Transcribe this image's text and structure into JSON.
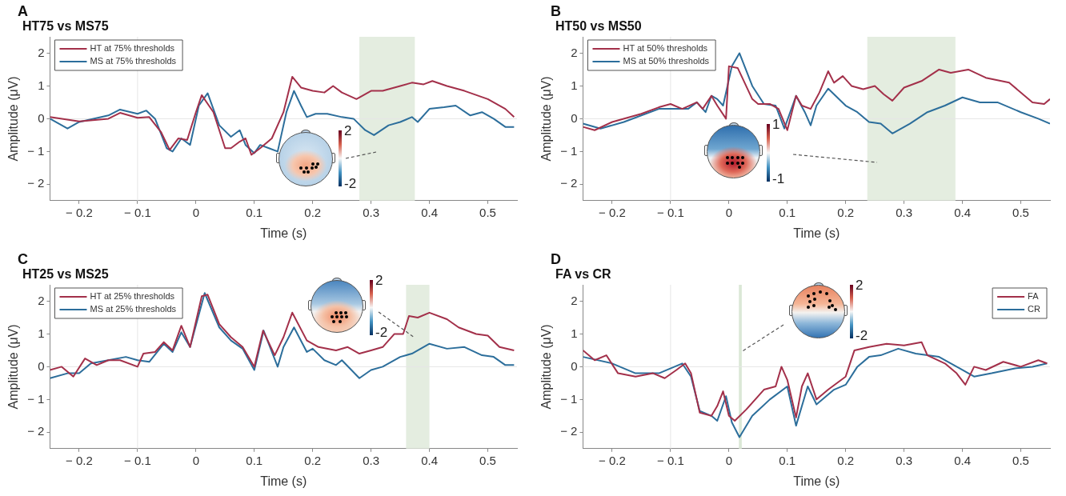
{
  "chart_data": [
    {
      "type": "line",
      "title": "HT75 vs MS75",
      "xlabel": "Time (s)",
      "ylabel": "Amplitude (μV)",
      "annotations": [
        "A",
        "2",
        "-2"
      ],
      "legend": "top left",
      "xlim": [
        -0.25,
        0.55
      ],
      "xticks": [
        -0.2,
        -0.1,
        0,
        0.1,
        0.2,
        0.3,
        0.4,
        0.5
      ],
      "ylim": [
        -2.5,
        2.5
      ],
      "yticks": [
        -2,
        -1,
        0,
        1,
        2
      ],
      "ref_lines": [
        {
          "axis": "x",
          "value": -0.1,
          "color": "#e6e6e6"
        },
        {
          "axis": "y",
          "value": 0,
          "color": "#e6e6e6"
        }
      ],
      "bands": [
        {
          "axis": "x",
          "from": 0.28,
          "to": 0.375,
          "color": "#e4ede0"
        }
      ],
      "series": [
        {
          "name": "HT at 75% thresholds",
          "color": "#a3304a",
          "x": [
            -0.25,
            -0.2,
            -0.15,
            -0.13,
            -0.1,
            -0.08,
            -0.06,
            -0.045,
            -0.03,
            -0.015,
            0,
            0.01,
            0.03,
            0.05,
            0.06,
            0.075,
            0.085,
            0.095,
            0.11,
            0.13,
            0.15,
            0.165,
            0.18,
            0.2,
            0.22,
            0.235,
            0.25,
            0.275,
            0.3,
            0.32,
            0.35,
            0.37,
            0.39,
            0.405,
            0.43,
            0.46,
            0.5,
            0.53,
            0.545
          ],
          "values": [
            0.05,
            -0.08,
            0,
            0.18,
            0.03,
            0.05,
            -0.4,
            -0.95,
            -0.6,
            -0.65,
            0.2,
            0.72,
            0.2,
            -0.9,
            -0.9,
            -0.7,
            -0.6,
            -1.1,
            -0.9,
            -0.6,
            0.2,
            1.28,
            0.95,
            0.85,
            0.8,
            1,
            0.8,
            0.6,
            0.85,
            0.85,
            1,
            1.1,
            1.05,
            1.15,
            1,
            0.85,
            0.6,
            0.3,
            0.05
          ]
        },
        {
          "name": "MS at 75% thresholds",
          "color": "#2c6e9b",
          "x": [
            -0.25,
            -0.22,
            -0.2,
            -0.15,
            -0.13,
            -0.1,
            -0.085,
            -0.07,
            -0.05,
            -0.04,
            -0.025,
            -0.01,
            0.005,
            0.02,
            0.04,
            0.06,
            0.075,
            0.085,
            0.1,
            0.11,
            0.125,
            0.14,
            0.155,
            0.168,
            0.18,
            0.19,
            0.205,
            0.225,
            0.25,
            0.27,
            0.29,
            0.305,
            0.33,
            0.35,
            0.37,
            0.38,
            0.4,
            0.425,
            0.445,
            0.47,
            0.49,
            0.51,
            0.53,
            0.545
          ],
          "values": [
            0,
            -0.3,
            -0.1,
            0.1,
            0.28,
            0.15,
            0.25,
            0,
            -0.9,
            -1,
            -0.6,
            -0.8,
            0.4,
            0.78,
            -0.2,
            -0.55,
            -0.35,
            -0.8,
            -1.05,
            -0.8,
            -0.9,
            -1,
            0.2,
            0.85,
            0.4,
            0.05,
            0.15,
            0.15,
            0.05,
            0,
            -0.35,
            -0.5,
            -0.2,
            -0.1,
            0.05,
            -0.1,
            0.3,
            0.35,
            0.4,
            0.1,
            0.2,
            0,
            -0.25,
            -0.25
          ]
        }
      ]
    },
    {
      "type": "line",
      "title": "HT50 vs MS50",
      "xlabel": "Time (s)",
      "ylabel": "Amplitude (μV)",
      "annotations": [
        "B",
        "1",
        "-1"
      ],
      "legend": "top left",
      "xlim": [
        -0.25,
        0.55
      ],
      "xticks": [
        -0.2,
        -0.1,
        0,
        0.1,
        0.2,
        0.3,
        0.4,
        0.5
      ],
      "ylim": [
        -2.5,
        2.5
      ],
      "yticks": [
        -2,
        -1,
        0,
        1,
        2
      ],
      "ref_lines": [
        {
          "axis": "x",
          "value": -0.1,
          "color": "#e6e6e6"
        },
        {
          "axis": "y",
          "value": 0,
          "color": "#e6e6e6"
        }
      ],
      "bands": [
        {
          "axis": "x",
          "from": 0.237,
          "to": 0.388,
          "color": "#e4ede0"
        }
      ],
      "series": [
        {
          "name": "HT at 50% thresholds",
          "color": "#a3304a",
          "x": [
            -0.25,
            -0.23,
            -0.2,
            -0.15,
            -0.12,
            -0.1,
            -0.08,
            -0.055,
            -0.045,
            -0.03,
            -0.02,
            -0.005,
            0,
            0.015,
            0.04,
            0.05,
            0.07,
            0.085,
            0.1,
            0.115,
            0.125,
            0.14,
            0.155,
            0.17,
            0.18,
            0.195,
            0.21,
            0.23,
            0.25,
            0.265,
            0.28,
            0.3,
            0.33,
            0.36,
            0.38,
            0.41,
            0.44,
            0.48,
            0.52,
            0.54,
            0.55
          ],
          "values": [
            -0.25,
            -0.35,
            -0.1,
            0.15,
            0.35,
            0.45,
            0.3,
            0.5,
            0.3,
            0.7,
            0.4,
            0,
            1.6,
            1.55,
            0.6,
            0.45,
            0.45,
            0.3,
            -0.35,
            0.7,
            0.4,
            0.3,
            0.8,
            1.45,
            1.1,
            1.3,
            1,
            0.9,
            1,
            0.75,
            0.55,
            0.95,
            1.15,
            1.5,
            1.4,
            1.5,
            1.25,
            1.1,
            0.5,
            0.45,
            0.6
          ]
        },
        {
          "name": "MS at 50% thresholds",
          "color": "#2c6e9b",
          "x": [
            -0.25,
            -0.22,
            -0.18,
            -0.15,
            -0.12,
            -0.1,
            -0.07,
            -0.055,
            -0.04,
            -0.03,
            -0.02,
            -0.01,
            0.005,
            0.018,
            0.04,
            0.06,
            0.08,
            0.095,
            0.115,
            0.13,
            0.14,
            0.15,
            0.17,
            0.2,
            0.22,
            0.24,
            0.26,
            0.28,
            0.31,
            0.34,
            0.37,
            0.4,
            0.43,
            0.46,
            0.5,
            0.53,
            0.55
          ],
          "values": [
            -0.15,
            -0.3,
            -0.1,
            0.1,
            0.3,
            0.3,
            0.3,
            0.5,
            0.2,
            0.7,
            0.6,
            0.4,
            1.6,
            2,
            1,
            0.45,
            0.4,
            -0.3,
            0.7,
            0.2,
            -0.2,
            0.4,
            0.92,
            0.4,
            0.2,
            -0.1,
            -0.15,
            -0.45,
            -0.15,
            0.2,
            0.4,
            0.65,
            0.5,
            0.5,
            0.2,
            0,
            -0.15
          ]
        }
      ]
    },
    {
      "type": "line",
      "title": "HT25 vs MS25",
      "xlabel": "Time (s)",
      "ylabel": "Amplitude (μV)",
      "annotations": [
        "C",
        "2",
        "-2"
      ],
      "legend": "top left",
      "xlim": [
        -0.25,
        0.55
      ],
      "xticks": [
        -0.2,
        -0.1,
        0,
        0.1,
        0.2,
        0.3,
        0.4,
        0.5
      ],
      "ylim": [
        -2.5,
        2.5
      ],
      "yticks": [
        -2,
        -1,
        0,
        1,
        2
      ],
      "ref_lines": [
        {
          "axis": "x",
          "value": -0.1,
          "color": "#e6e6e6"
        },
        {
          "axis": "y",
          "value": 0,
          "color": "#e6e6e6"
        }
      ],
      "bands": [
        {
          "axis": "x",
          "from": 0.36,
          "to": 0.4,
          "color": "#e4ede0"
        }
      ],
      "series": [
        {
          "name": "HT at 25% thresholds",
          "color": "#a3304a",
          "x": [
            -0.25,
            -0.23,
            -0.21,
            -0.19,
            -0.17,
            -0.15,
            -0.13,
            -0.1,
            -0.09,
            -0.07,
            -0.055,
            -0.04,
            -0.025,
            -0.01,
            0.01,
            0.02,
            0.04,
            0.06,
            0.08,
            0.1,
            0.115,
            0.135,
            0.15,
            0.165,
            0.19,
            0.21,
            0.24,
            0.26,
            0.28,
            0.3,
            0.32,
            0.34,
            0.355,
            0.365,
            0.38,
            0.4,
            0.43,
            0.45,
            0.48,
            0.5,
            0.52,
            0.545
          ],
          "values": [
            -0.1,
            0,
            -0.3,
            0.25,
            0.05,
            0.2,
            0.2,
            0,
            0.4,
            0.45,
            0.75,
            0.5,
            1.25,
            0.6,
            2.15,
            2.2,
            1.3,
            0.9,
            0.6,
            0,
            1.1,
            0.35,
            0.9,
            1.65,
            0.8,
            0.6,
            0.5,
            0.6,
            0.4,
            0.5,
            0.6,
            1,
            1,
            1.55,
            1.5,
            1.65,
            1.45,
            1.2,
            1,
            0.95,
            0.6,
            0.5
          ]
        },
        {
          "name": "MS at 25% thresholds",
          "color": "#2c6e9b",
          "x": [
            -0.25,
            -0.22,
            -0.2,
            -0.18,
            -0.15,
            -0.12,
            -0.1,
            -0.08,
            -0.055,
            -0.04,
            -0.025,
            -0.01,
            0.015,
            0.04,
            0.06,
            0.08,
            0.1,
            0.116,
            0.14,
            0.15,
            0.168,
            0.19,
            0.2,
            0.22,
            0.24,
            0.25,
            0.28,
            0.3,
            0.32,
            0.35,
            0.37,
            0.4,
            0.43,
            0.46,
            0.49,
            0.51,
            0.53,
            0.545
          ],
          "values": [
            -0.35,
            -0.2,
            -0.2,
            0.1,
            0.2,
            0.3,
            0.2,
            0.15,
            0.7,
            0.45,
            1.05,
            0.6,
            2.25,
            1.2,
            0.8,
            0.55,
            -0.1,
            1.1,
            0,
            0.6,
            1.2,
            0.45,
            0.55,
            0.2,
            0.05,
            0.2,
            -0.35,
            -0.1,
            0,
            0.3,
            0.4,
            0.7,
            0.55,
            0.6,
            0.35,
            0.3,
            0.05,
            0.05
          ]
        }
      ]
    },
    {
      "type": "line",
      "title": "FA vs CR",
      "xlabel": "Time (s)",
      "ylabel": "Amplitude (μV)",
      "annotations": [
        "D",
        "2",
        "-2"
      ],
      "legend": "top right",
      "xlim": [
        -0.25,
        0.55
      ],
      "xticks": [
        -0.2,
        -0.1,
        0,
        0.1,
        0.2,
        0.3,
        0.4,
        0.5
      ],
      "ylim": [
        -2.5,
        2.5
      ],
      "yticks": [
        -2,
        -1,
        0,
        1,
        2
      ],
      "ref_lines": [
        {
          "axis": "x",
          "value": -0.1,
          "color": "#e6e6e6"
        },
        {
          "axis": "y",
          "value": 0,
          "color": "#e6e6e6"
        }
      ],
      "bands": [
        {
          "axis": "x",
          "from": 0.017,
          "to": 0.022,
          "color": "#dbe8d6"
        }
      ],
      "series": [
        {
          "name": "FA",
          "color": "#a3304a",
          "x": [
            -0.25,
            -0.23,
            -0.21,
            -0.19,
            -0.16,
            -0.13,
            -0.11,
            -0.09,
            -0.075,
            -0.065,
            -0.05,
            -0.03,
            -0.02,
            -0.01,
            0,
            0.01,
            0.03,
            0.06,
            0.08,
            0.09,
            0.1,
            0.115,
            0.125,
            0.135,
            0.15,
            0.17,
            0.2,
            0.215,
            0.24,
            0.27,
            0.3,
            0.33,
            0.34,
            0.37,
            0.39,
            0.405,
            0.42,
            0.44,
            0.47,
            0.5,
            0.53,
            0.545
          ],
          "values": [
            0.5,
            0.2,
            0.35,
            -0.2,
            -0.3,
            -0.2,
            -0.35,
            -0.1,
            0.1,
            -0.2,
            -1.4,
            -1.5,
            -1.2,
            -0.75,
            -1.5,
            -1.65,
            -1.3,
            -0.7,
            -0.6,
            0,
            -0.4,
            -1.55,
            -0.6,
            -0.2,
            -1,
            -0.7,
            -0.3,
            0.5,
            0.6,
            0.7,
            0.65,
            0.75,
            0.35,
            0.1,
            -0.2,
            -0.55,
            0,
            -0.1,
            0.15,
            0,
            0.2,
            0.1
          ]
        },
        {
          "name": "CR",
          "color": "#2c6e9b",
          "x": [
            -0.25,
            -0.2,
            -0.16,
            -0.12,
            -0.08,
            -0.065,
            -0.05,
            -0.03,
            -0.02,
            -0.005,
            0.005,
            0.018,
            0.04,
            0.07,
            0.1,
            0.115,
            0.135,
            0.15,
            0.18,
            0.2,
            0.22,
            0.24,
            0.26,
            0.29,
            0.32,
            0.36,
            0.4,
            0.42,
            0.45,
            0.49,
            0.52,
            0.545
          ],
          "values": [
            0.3,
            0.1,
            -0.2,
            -0.2,
            0.1,
            -0.3,
            -1.35,
            -1.5,
            -1.65,
            -0.9,
            -1.7,
            -2.15,
            -1.5,
            -1,
            -0.6,
            -1.8,
            -0.6,
            -1.15,
            -0.7,
            -0.55,
            0,
            0.3,
            0.35,
            0.55,
            0.4,
            0.3,
            -0.1,
            -0.3,
            -0.2,
            -0.05,
            0,
            0.1
          ]
        }
      ]
    }
  ]
}
